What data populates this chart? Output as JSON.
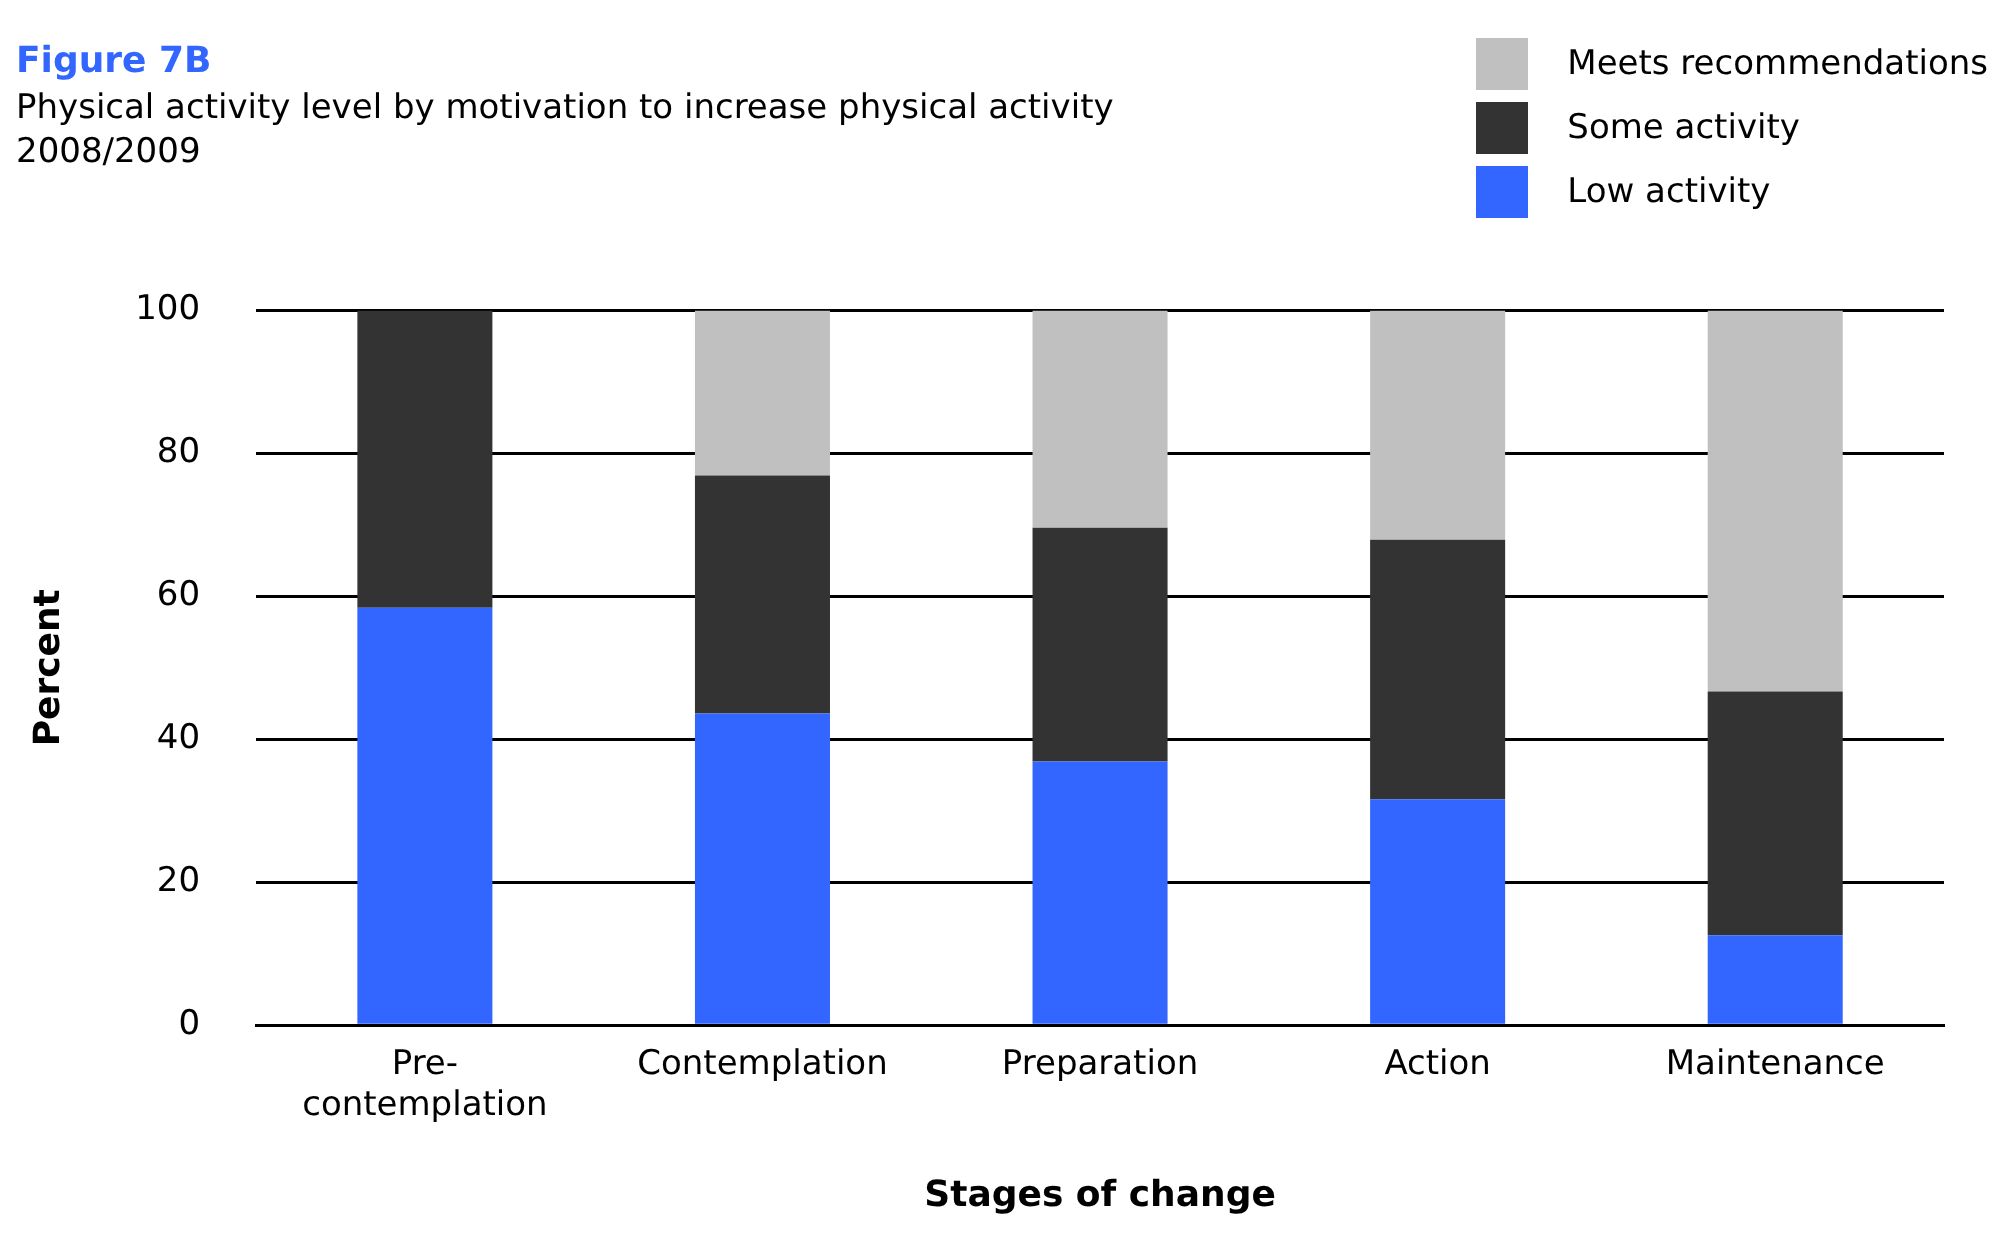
{
  "chart_data": {
    "type": "bar",
    "title": "Figure 7B",
    "subtitle": "Physical activity level by motivation to increase physical activity\n2008/2009",
    "xlabel": "Stages of change",
    "ylabel": "Percent",
    "categories": [
      "Pre-contemplation",
      "Contemplation",
      "Preparation",
      "Action",
      "Maintenance"
    ],
    "series": [
      {
        "name": "Low activity",
        "color": "#3366ff",
        "values": [
          58.4,
          43.6,
          36.9,
          31.6,
          12.6
        ]
      },
      {
        "name": "Some activity",
        "color": "#333333",
        "values": [
          41.6,
          33.3,
          32.7,
          36.3,
          34.1
        ]
      },
      {
        "name": "Meets recommendations",
        "color": "#c0c0c0",
        "values": [
          0,
          23.1,
          30.4,
          32.1,
          53.3
        ]
      }
    ],
    "stacked": true,
    "ylim": [
      0,
      100
    ],
    "yticks": [
      0,
      20,
      40,
      60,
      80,
      100
    ],
    "grid": "y",
    "legend": "top right"
  }
}
